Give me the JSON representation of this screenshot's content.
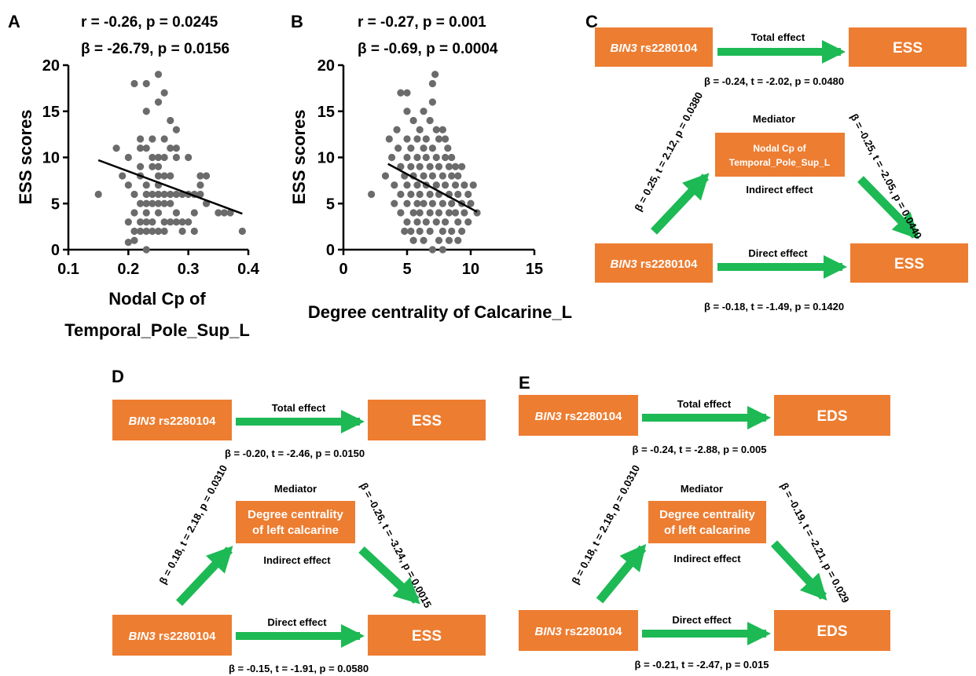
{
  "chart_data": [
    {
      "panel": "A",
      "type": "scatter",
      "stat_line1": "r = -0.26, p = 0.0245",
      "stat_line2": "β = -26.79, p = 0.0156",
      "xlabel_line1": "Nodal Cp of",
      "xlabel_line2": "Temporal_Pole_Sup_L",
      "ylabel": "ESS scores",
      "xlim": [
        0.1,
        0.4
      ],
      "ylim": [
        0,
        20
      ],
      "xticks": [
        0.1,
        0.2,
        0.3,
        0.4
      ],
      "xtick_labels": [
        "0.1",
        "0.2",
        "0.3",
        "0.4"
      ],
      "yticks": [
        0,
        5,
        10,
        15,
        20
      ],
      "ytick_labels": [
        "0",
        "5",
        "10",
        "15",
        "20"
      ],
      "fit_line": [
        [
          0.15,
          9.7
        ],
        [
          0.39,
          3.9
        ]
      ],
      "points": [
        [
          0.15,
          6
        ],
        [
          0.18,
          11
        ],
        [
          0.19,
          8
        ],
        [
          0.2,
          10
        ],
        [
          0.2,
          7
        ],
        [
          0.2,
          3
        ],
        [
          0.2,
          0.8
        ],
        [
          0.21,
          18
        ],
        [
          0.21,
          6
        ],
        [
          0.21,
          4
        ],
        [
          0.21,
          2
        ],
        [
          0.21,
          1
        ],
        [
          0.22,
          12
        ],
        [
          0.22,
          11
        ],
        [
          0.22,
          9
        ],
        [
          0.22,
          8
        ],
        [
          0.22,
          5
        ],
        [
          0.22,
          3
        ],
        [
          0.22,
          2
        ],
        [
          0.23,
          18
        ],
        [
          0.23,
          15
        ],
        [
          0.23,
          11
        ],
        [
          0.23,
          7
        ],
        [
          0.23,
          6
        ],
        [
          0.23,
          5
        ],
        [
          0.23,
          4
        ],
        [
          0.23,
          3
        ],
        [
          0.23,
          2
        ],
        [
          0.23,
          0
        ],
        [
          0.24,
          12
        ],
        [
          0.24,
          10
        ],
        [
          0.24,
          9
        ],
        [
          0.24,
          6
        ],
        [
          0.24,
          5
        ],
        [
          0.24,
          3
        ],
        [
          0.24,
          2
        ],
        [
          0.25,
          19
        ],
        [
          0.25,
          16
        ],
        [
          0.25,
          10
        ],
        [
          0.25,
          9
        ],
        [
          0.25,
          8
        ],
        [
          0.25,
          7
        ],
        [
          0.25,
          6
        ],
        [
          0.25,
          5
        ],
        [
          0.25,
          4
        ],
        [
          0.25,
          2
        ],
        [
          0.26,
          17
        ],
        [
          0.26,
          12
        ],
        [
          0.26,
          10
        ],
        [
          0.26,
          8
        ],
        [
          0.26,
          6
        ],
        [
          0.26,
          5
        ],
        [
          0.26,
          3
        ],
        [
          0.26,
          2
        ],
        [
          0.27,
          14
        ],
        [
          0.27,
          11
        ],
        [
          0.27,
          8
        ],
        [
          0.27,
          6
        ],
        [
          0.27,
          5
        ],
        [
          0.27,
          3
        ],
        [
          0.28,
          13
        ],
        [
          0.28,
          11
        ],
        [
          0.28,
          10
        ],
        [
          0.28,
          6
        ],
        [
          0.28,
          4
        ],
        [
          0.28,
          3
        ],
        [
          0.29,
          6
        ],
        [
          0.29,
          3
        ],
        [
          0.29,
          2
        ],
        [
          0.3,
          10
        ],
        [
          0.3,
          6
        ],
        [
          0.3,
          3
        ],
        [
          0.31,
          6
        ],
        [
          0.31,
          4
        ],
        [
          0.31,
          2
        ],
        [
          0.32,
          8
        ],
        [
          0.32,
          7
        ],
        [
          0.32,
          6
        ],
        [
          0.33,
          8
        ],
        [
          0.33,
          5
        ],
        [
          0.35,
          4
        ],
        [
          0.36,
          4
        ],
        [
          0.37,
          4
        ],
        [
          0.39,
          2
        ]
      ]
    },
    {
      "panel": "B",
      "type": "scatter",
      "stat_line1": "r = -0.27, p = 0.001",
      "stat_line2": "β = -0.69, p = 0.0004",
      "xlabel": "Degree centrality of Calcarine_L",
      "ylabel": "ESS scores",
      "xlim": [
        0,
        15
      ],
      "ylim": [
        0,
        20
      ],
      "xticks": [
        0,
        5,
        10,
        15
      ],
      "xtick_labels": [
        "0",
        "5",
        "10",
        "15"
      ],
      "yticks": [
        0,
        5,
        10,
        15,
        20
      ],
      "ytick_labels": [
        "0",
        "5",
        "10",
        "15",
        "20"
      ],
      "fit_line": [
        [
          3.5,
          9.3
        ],
        [
          10.5,
          4.1
        ]
      ],
      "points": [
        [
          2.2,
          6
        ],
        [
          3.3,
          8
        ],
        [
          3.6,
          12
        ],
        [
          3.8,
          10
        ],
        [
          4,
          7
        ],
        [
          4,
          5
        ],
        [
          4.2,
          13
        ],
        [
          4.3,
          11
        ],
        [
          4.5,
          17
        ],
        [
          4.5,
          9
        ],
        [
          4.5,
          6
        ],
        [
          4.5,
          4
        ],
        [
          4.8,
          8
        ],
        [
          4.8,
          2
        ],
        [
          5,
          17
        ],
        [
          5,
          15
        ],
        [
          5,
          12
        ],
        [
          5,
          10
        ],
        [
          5,
          7
        ],
        [
          5,
          5
        ],
        [
          5,
          3
        ],
        [
          5.3,
          11
        ],
        [
          5.3,
          9
        ],
        [
          5.3,
          6
        ],
        [
          5.3,
          2
        ],
        [
          5.5,
          14
        ],
        [
          5.5,
          8
        ],
        [
          5.5,
          4
        ],
        [
          5.5,
          1
        ],
        [
          5.8,
          12
        ],
        [
          5.8,
          10
        ],
        [
          5.8,
          7
        ],
        [
          5.8,
          5
        ],
        [
          5.8,
          3
        ],
        [
          6,
          13
        ],
        [
          6,
          9
        ],
        [
          6,
          6
        ],
        [
          6,
          4
        ],
        [
          6,
          2
        ],
        [
          6.3,
          15
        ],
        [
          6.3,
          11
        ],
        [
          6.3,
          8
        ],
        [
          6.3,
          5
        ],
        [
          6.3,
          1
        ],
        [
          6.5,
          12
        ],
        [
          6.5,
          10
        ],
        [
          6.5,
          7
        ],
        [
          6.5,
          3
        ],
        [
          6.8,
          14
        ],
        [
          6.8,
          9
        ],
        [
          6.8,
          6
        ],
        [
          6.8,
          4
        ],
        [
          6.8,
          2
        ],
        [
          7,
          18
        ],
        [
          7,
          16
        ],
        [
          7,
          11
        ],
        [
          7,
          8
        ],
        [
          7,
          5
        ],
        [
          7,
          0
        ],
        [
          7.2,
          19
        ],
        [
          7.3,
          13
        ],
        [
          7.3,
          10
        ],
        [
          7.3,
          7
        ],
        [
          7.3,
          3
        ],
        [
          7.5,
          12
        ],
        [
          7.5,
          9
        ],
        [
          7.5,
          6
        ],
        [
          7.5,
          4
        ],
        [
          7.5,
          1
        ],
        [
          7.8,
          13
        ],
        [
          7.8,
          8
        ],
        [
          7.8,
          5
        ],
        [
          7.8,
          2
        ],
        [
          7.8,
          0
        ],
        [
          8,
          12
        ],
        [
          8,
          10
        ],
        [
          8,
          7
        ],
        [
          8,
          3
        ],
        [
          8.2,
          11
        ],
        [
          8.3,
          9
        ],
        [
          8.3,
          6
        ],
        [
          8.3,
          4
        ],
        [
          8.3,
          1
        ],
        [
          8.5,
          10
        ],
        [
          8.5,
          8
        ],
        [
          8.5,
          5
        ],
        [
          8.5,
          2
        ],
        [
          8.8,
          9
        ],
        [
          8.8,
          7
        ],
        [
          8.8,
          4
        ],
        [
          9,
          8
        ],
        [
          9,
          6
        ],
        [
          9,
          3
        ],
        [
          9,
          1
        ],
        [
          9.3,
          9
        ],
        [
          9.3,
          5
        ],
        [
          9.3,
          2
        ],
        [
          9.5,
          7
        ],
        [
          9.5,
          4
        ],
        [
          9.8,
          6
        ],
        [
          9.8,
          3
        ],
        [
          10,
          5
        ],
        [
          10.2,
          7
        ],
        [
          10.5,
          4
        ]
      ]
    }
  ],
  "panels": {
    "A": "A",
    "B": "B",
    "C": "C",
    "D": "D",
    "E": "E"
  },
  "mediation": {
    "C": {
      "total": {
        "x_prefix": "BIN3",
        "x_rest": " rs2280104",
        "y": "ESS",
        "arrow_label": "Total effect",
        "stat": "β = -0.24, t = -2.02, p = 0.0480"
      },
      "mediator_title": "Mediator",
      "mediator_line1": "Nodal Cp of",
      "mediator_line2": "Temporal_Pole_Sup_L",
      "path_a": "β = 0.25, t = 2.12, p = 0.0380",
      "path_b": "β = -0.25, t = -2.05, p = 0.0440",
      "indirect_label": "Indirect effect",
      "direct": {
        "x_prefix": "BIN3",
        "x_rest": " rs2280104",
        "y": "ESS",
        "arrow_label": "Direct effect",
        "stat": "β = -0.18, t = -1.49, p = 0.1420"
      }
    },
    "D": {
      "total": {
        "x_prefix": "BIN3",
        "x_rest": " rs2280104",
        "y": "ESS",
        "arrow_label": "Total effect",
        "stat": "β = -0.20, t = -2.46, p = 0.0150"
      },
      "mediator_title": "Mediator",
      "mediator_line1": "Degree centrality",
      "mediator_line2": "of left calcarine",
      "path_a": "β = 0.18, t = 2.18, p = 0.0310",
      "path_b": "β = -0.26, t = -3.24, p = 0.0015",
      "indirect_label": "Indirect effect",
      "direct": {
        "x_prefix": "BIN3",
        "x_rest": " rs2280104",
        "y": "ESS",
        "arrow_label": "Direct effect",
        "stat": "β = -0.15, t = -1.91, p = 0.0580"
      }
    },
    "E": {
      "total": {
        "x_prefix": "BIN3",
        "x_rest": " rs2280104",
        "y": "EDS",
        "arrow_label": "Total effect",
        "stat": "β = -0.24, t = -2.88, p = 0.005"
      },
      "mediator_title": "Mediator",
      "mediator_line1": "Degree centrality",
      "mediator_line2": "of left calcarine",
      "path_a": "β = 0.18, t = 2.18, p = 0.0310",
      "path_b": "β = -0.19, t = -2.21, p = 0.029",
      "indirect_label": "Indirect effect",
      "direct": {
        "x_prefix": "BIN3",
        "x_rest": " rs2280104",
        "y": "EDS",
        "arrow_label": "Direct effect",
        "stat": "β = -0.21, t = -2.47, p = 0.015"
      }
    }
  },
  "colors": {
    "box": "#ED7D31",
    "arrow": "#1DB954",
    "point": "#6b6b6b",
    "line": "#000000"
  }
}
